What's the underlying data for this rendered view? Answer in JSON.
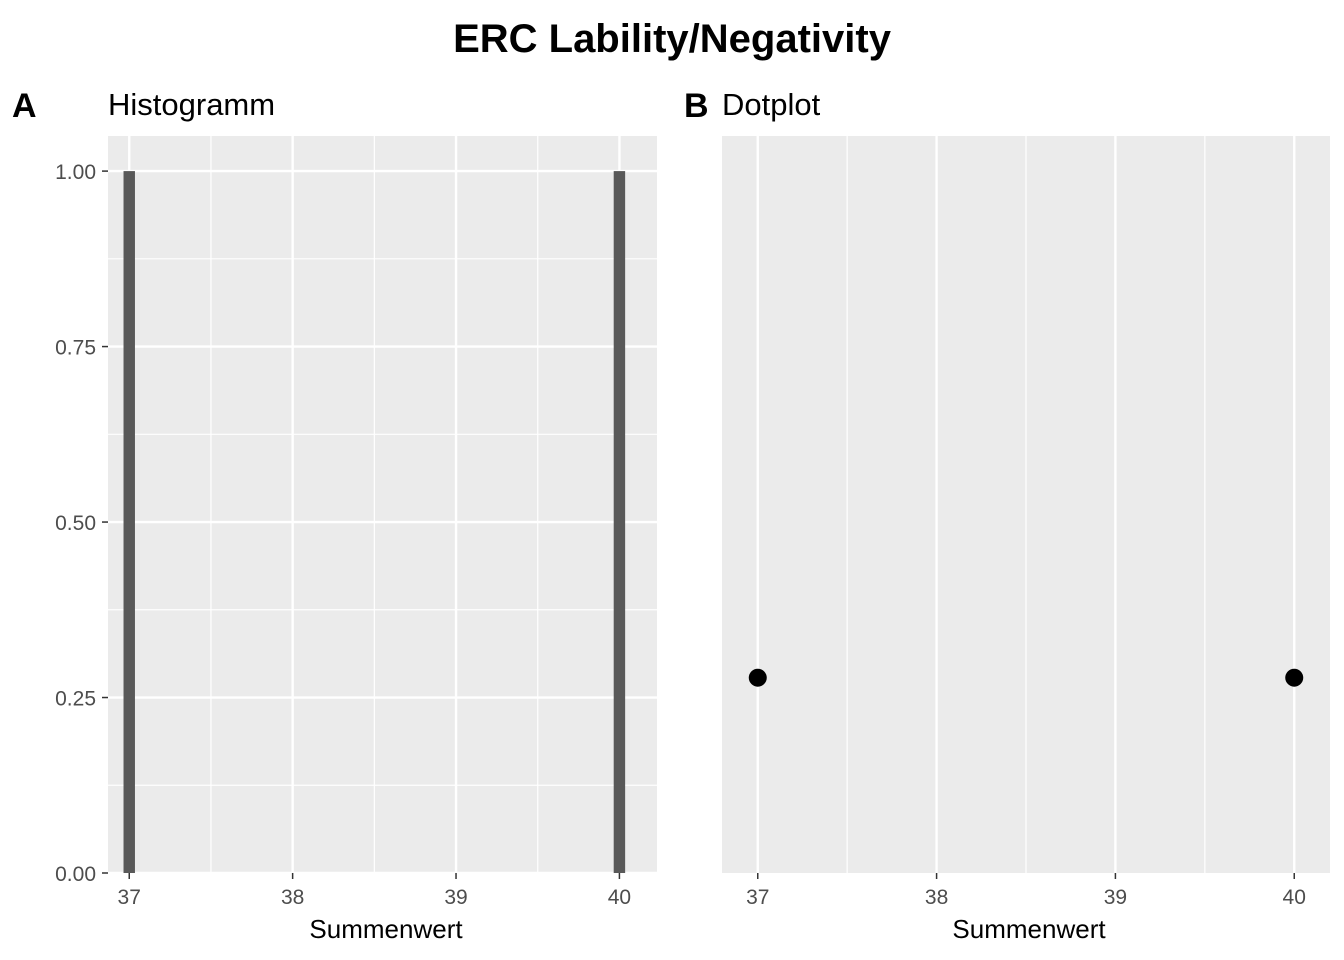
{
  "title": "ERC Lability/Negativity",
  "chart_data": [
    {
      "type": "bar",
      "tag": "A",
      "subtitle": "Histogramm",
      "xlabel": "Summenwert",
      "ylabel": "",
      "xlim": [
        36.87,
        40.23
      ],
      "ylim": [
        0,
        1.05
      ],
      "x_ticks": [
        "37",
        "38",
        "39",
        "40"
      ],
      "y_ticks": [
        "0.00",
        "0.25",
        "0.50",
        "0.75",
        "1.00"
      ],
      "bins": [
        {
          "x": 37,
          "count": 1
        },
        {
          "x": 40,
          "count": 1
        }
      ],
      "bar_color": "#595959",
      "panel_bg": "#ebebeb",
      "grid": true
    },
    {
      "type": "scatter",
      "tag": "B",
      "subtitle": "Dotplot",
      "xlabel": "Summenwert",
      "ylabel": "",
      "xlim": [
        36.8,
        40.2
      ],
      "x_ticks": [
        "37",
        "38",
        "39",
        "40"
      ],
      "points": [
        {
          "x": 37,
          "y": 0.265
        },
        {
          "x": 40,
          "y": 0.265
        }
      ],
      "point_color": "#000000",
      "panel_bg": "#ebebeb",
      "grid": true
    }
  ]
}
